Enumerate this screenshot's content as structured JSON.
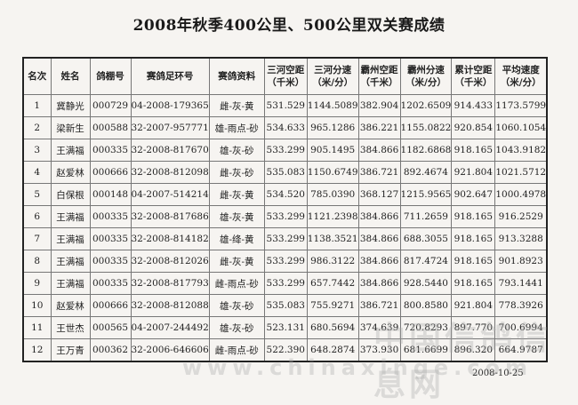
{
  "title": "2008年秋季400公里、500公里双关赛成绩",
  "table": {
    "headers": [
      "名次",
      "姓名",
      "鸽棚号",
      "赛鸽足环号",
      "赛鸽资料",
      "三河空距\n（千米）",
      "三河分速\n（米/分）",
      "霸州空距\n（千米）",
      "霸州分速\n（米/分）",
      "累计空距\n（千米）",
      "平均速度\n（米/分）"
    ],
    "rows": [
      [
        "1",
        "冀静光",
        "000729",
        "04-2008-179365",
        "雌-灰-黄",
        "531.529",
        "1144.5089",
        "382.904",
        "1202.6509",
        "914.433",
        "1173.5799"
      ],
      [
        "2",
        "梁新生",
        "000588",
        "32-2007-957771",
        "雄-雨点-砂",
        "534.633",
        "965.1286",
        "386.221",
        "1155.0822",
        "920.854",
        "1060.1054"
      ],
      [
        "3",
        "王满福",
        "000335",
        "32-2008-817670",
        "雄-灰-砂",
        "533.299",
        "905.1495",
        "384.866",
        "1182.6868",
        "918.165",
        "1043.9182"
      ],
      [
        "4",
        "赵爱林",
        "000666",
        "32-2008-812098",
        "雌-灰-砂",
        "535.083",
        "1150.6749",
        "386.721",
        "892.4674",
        "921.804",
        "1021.5712"
      ],
      [
        "5",
        "白保根",
        "000148",
        "04-2007-514214",
        "雌-灰-黄",
        "534.520",
        "785.0390",
        "368.127",
        "1215.9565",
        "902.647",
        "1000.4978"
      ],
      [
        "6",
        "王满福",
        "000335",
        "32-2008-817686",
        "雄-灰-黄",
        "533.299",
        "1121.2398",
        "384.866",
        "711.2659",
        "918.165",
        "916.2529"
      ],
      [
        "7",
        "王满福",
        "000335",
        "32-2008-814182",
        "雄-绛-黄",
        "533.299",
        "1138.3521",
        "384.866",
        "688.3055",
        "918.165",
        "913.3288"
      ],
      [
        "8",
        "王满福",
        "000335",
        "32-2008-812026",
        "雌-灰-黄",
        "533.299",
        "986.3122",
        "384.866",
        "817.4724",
        "918.165",
        "901.8923"
      ],
      [
        "9",
        "王满福",
        "000335",
        "32-2008-817793",
        "雌-雨点-砂",
        "533.299",
        "657.7442",
        "384.866",
        "928.5440",
        "918.165",
        "793.1441"
      ],
      [
        "10",
        "赵爱林",
        "000666",
        "32-2008-812088",
        "雄-灰-砂",
        "535.083",
        "755.9271",
        "386.721",
        "800.8580",
        "921.804",
        "778.3926"
      ],
      [
        "11",
        "王世杰",
        "000565",
        "04-2007-244492",
        "雄-灰-砂",
        "523.131",
        "680.5694",
        "374.639",
        "720.8293",
        "897.770",
        "700.6994"
      ],
      [
        "12",
        "王万青",
        "000362",
        "32-2006-646606",
        "雌-雨点-砂",
        "522.390",
        "648.2874",
        "373.930",
        "681.6699",
        "896.320",
        "664.9787"
      ]
    ]
  },
  "date": "2008-10-25",
  "watermark": {
    "cn": "中国信鸽信息网",
    "url": "www.chinaxinge.com"
  }
}
